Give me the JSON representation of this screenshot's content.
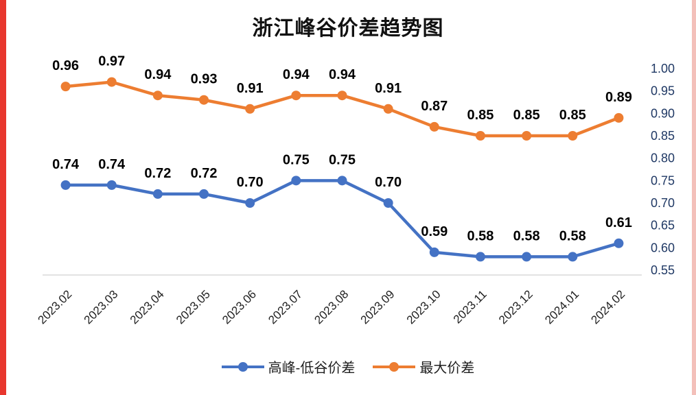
{
  "page": {
    "title": "浙江峰谷价差趋势图"
  },
  "colors": {
    "blue_series": "#4472C4",
    "orange_series": "#ED7D31",
    "axis_line": "#D9D9D9",
    "axis_label": "#1F3864",
    "category_label": "#1f1f1f",
    "data_label": "#000000",
    "edge_strip_left": "#E8372E",
    "edge_strip_right": "#F3C0BA"
  },
  "chart_data": {
    "type": "line",
    "title": "浙江峰谷价差趋势图",
    "categories": [
      "2023.02",
      "2023.03",
      "2023.04",
      "2023.05",
      "2023.06",
      "2023.07",
      "2023.08",
      "2023.09",
      "2023.10",
      "2023.11",
      "2023.12",
      "2024.01",
      "2024.02"
    ],
    "series": [
      {
        "key": "peak-valley-diff",
        "name": "高峰-低谷价差",
        "color_key": "blue_series",
        "values": [
          0.74,
          0.74,
          0.72,
          0.72,
          0.7,
          0.75,
          0.75,
          0.7,
          0.59,
          0.58,
          0.58,
          0.58,
          0.61
        ]
      },
      {
        "key": "max-diff",
        "name": "最大价差",
        "color_key": "orange_series",
        "values": [
          0.96,
          0.97,
          0.94,
          0.93,
          0.91,
          0.94,
          0.94,
          0.91,
          0.87,
          0.85,
          0.85,
          0.85,
          0.89
        ]
      }
    ],
    "ylim": [
      0.55,
      1.0
    ],
    "y_ticks": [
      "1.00",
      "0.95",
      "0.90",
      "0.85",
      "0.80",
      "0.75",
      "0.70",
      "0.65",
      "0.60",
      "0.55"
    ],
    "y_axis_side": "right",
    "grid": false,
    "data_labels": true,
    "legend_position": "bottom"
  }
}
